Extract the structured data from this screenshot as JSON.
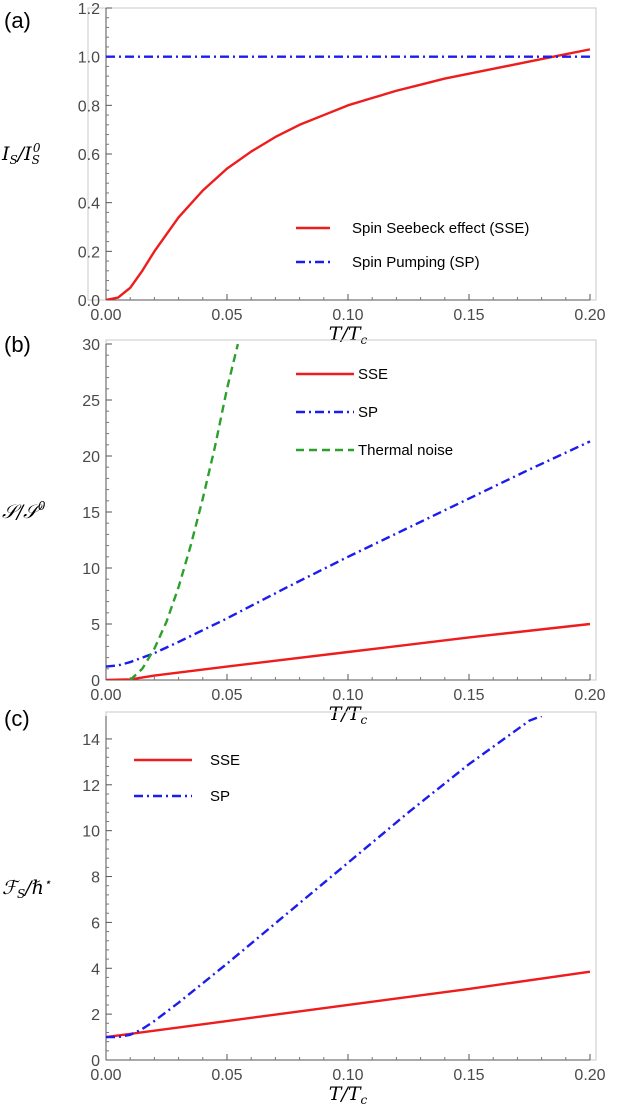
{
  "chart_data": [
    {
      "type": "line",
      "panel_label": "(a)",
      "xlabel": "T/T",
      "xlabel_sub": "c",
      "ylabel_main": "I",
      "ylabel_sub": "S",
      "ylabel_den": "I",
      "ylabel_den_sub": "S",
      "ylabel_den_sup": "0",
      "xlim": [
        0,
        0.2
      ],
      "ylim": [
        0,
        1.2
      ],
      "xticks": [
        0.0,
        0.05,
        0.1,
        0.15,
        0.2
      ],
      "xtick_labels": [
        "0.00",
        "0.05",
        "0.10",
        "0.15",
        "0.20"
      ],
      "yticks": [
        0.0,
        0.2,
        0.4,
        0.6,
        0.8,
        1.0,
        1.2
      ],
      "ytick_labels": [
        "0.0",
        "0.2",
        "0.4",
        "0.6",
        "0.8",
        "1.0",
        "1.2"
      ],
      "legend_position": "bottom-right",
      "series": [
        {
          "name": "Spin Seebeck effect (SSE)",
          "color": "#ee1c1c",
          "style": "solid",
          "x": [
            0,
            0.005,
            0.01,
            0.015,
            0.02,
            0.03,
            0.04,
            0.05,
            0.06,
            0.07,
            0.08,
            0.09,
            0.1,
            0.11,
            0.12,
            0.13,
            0.14,
            0.15,
            0.16,
            0.17,
            0.18,
            0.19,
            0.2
          ],
          "y": [
            0.0,
            0.01,
            0.05,
            0.12,
            0.2,
            0.34,
            0.45,
            0.54,
            0.61,
            0.67,
            0.72,
            0.76,
            0.8,
            0.83,
            0.86,
            0.885,
            0.91,
            0.93,
            0.95,
            0.97,
            0.99,
            1.01,
            1.03
          ]
        },
        {
          "name": "Spin Pumping (SP)",
          "color": "#1c1cee",
          "style": "dashdot",
          "x": [
            0,
            0.2
          ],
          "y": [
            1.0,
            1.0
          ]
        }
      ]
    },
    {
      "type": "line",
      "panel_label": "(b)",
      "xlabel": "T/T",
      "xlabel_sub": "c",
      "ylabel_main": "𝒮",
      "ylabel_den": "𝒮",
      "ylabel_den_sup": "0",
      "xlim": [
        0,
        0.2
      ],
      "ylim": [
        0,
        30
      ],
      "xticks": [
        0.0,
        0.05,
        0.1,
        0.15,
        0.2
      ],
      "xtick_labels": [
        "0.00",
        "0.05",
        "0.10",
        "0.15",
        "0.20"
      ],
      "yticks": [
        0,
        5,
        10,
        15,
        20,
        25,
        30
      ],
      "ytick_labels": [
        "0",
        "5",
        "10",
        "15",
        "20",
        "25",
        "30"
      ],
      "legend_position": "top-center",
      "series": [
        {
          "name": "SSE",
          "color": "#ee1c1c",
          "style": "solid",
          "x": [
            0,
            0.01,
            0.02,
            0.05,
            0.1,
            0.15,
            0.2
          ],
          "y": [
            0.0,
            0.05,
            0.4,
            1.2,
            2.5,
            3.8,
            5.0
          ]
        },
        {
          "name": "SP",
          "color": "#1c1cee",
          "style": "dashdot",
          "x": [
            0,
            0.005,
            0.01,
            0.02,
            0.03,
            0.05,
            0.075,
            0.1,
            0.125,
            0.15,
            0.175,
            0.2
          ],
          "y": [
            1.2,
            1.3,
            1.6,
            2.4,
            3.4,
            5.5,
            8.3,
            11.0,
            13.6,
            16.2,
            18.8,
            21.3
          ]
        },
        {
          "name": "Thermal noise",
          "color": "#2ca02c",
          "style": "dashed",
          "x": [
            0.01,
            0.015,
            0.02,
            0.025,
            0.03,
            0.035,
            0.04,
            0.045,
            0.05,
            0.0545
          ],
          "y": [
            0.0,
            1.0,
            2.8,
            5.2,
            8.3,
            12.0,
            16.2,
            20.8,
            26.0,
            30.0
          ]
        }
      ]
    },
    {
      "type": "line",
      "panel_label": "(c)",
      "xlabel": "T/T",
      "xlabel_sub": "c",
      "ylabel_main": "ℱ",
      "ylabel_sub": "S",
      "ylabel_den": "ℏ",
      "ylabel_den_sup": "⋆",
      "xlim": [
        0,
        0.2
      ],
      "ylim": [
        0,
        15
      ],
      "xticks": [
        0.0,
        0.05,
        0.1,
        0.15,
        0.2
      ],
      "xtick_labels": [
        "0.00",
        "0.05",
        "0.10",
        "0.15",
        "0.20"
      ],
      "yticks": [
        0,
        2,
        4,
        6,
        8,
        10,
        12,
        14
      ],
      "ytick_labels": [
        "0",
        "2",
        "4",
        "6",
        "8",
        "10",
        "12",
        "14"
      ],
      "legend_position": "top-left",
      "series": [
        {
          "name": "SSE",
          "color": "#ee1c1c",
          "style": "solid",
          "x": [
            0,
            0.05,
            0.1,
            0.15,
            0.2
          ],
          "y": [
            1.0,
            1.7,
            2.4,
            3.1,
            3.85
          ]
        },
        {
          "name": "SP",
          "color": "#1c1cee",
          "style": "dashdot",
          "x": [
            0,
            0.005,
            0.01,
            0.015,
            0.02,
            0.03,
            0.05,
            0.075,
            0.1,
            0.125,
            0.15,
            0.175,
            0.18
          ],
          "y": [
            1.0,
            1.0,
            1.1,
            1.35,
            1.7,
            2.5,
            4.2,
            6.4,
            8.6,
            10.8,
            12.9,
            14.8,
            15.0
          ]
        }
      ]
    }
  ]
}
